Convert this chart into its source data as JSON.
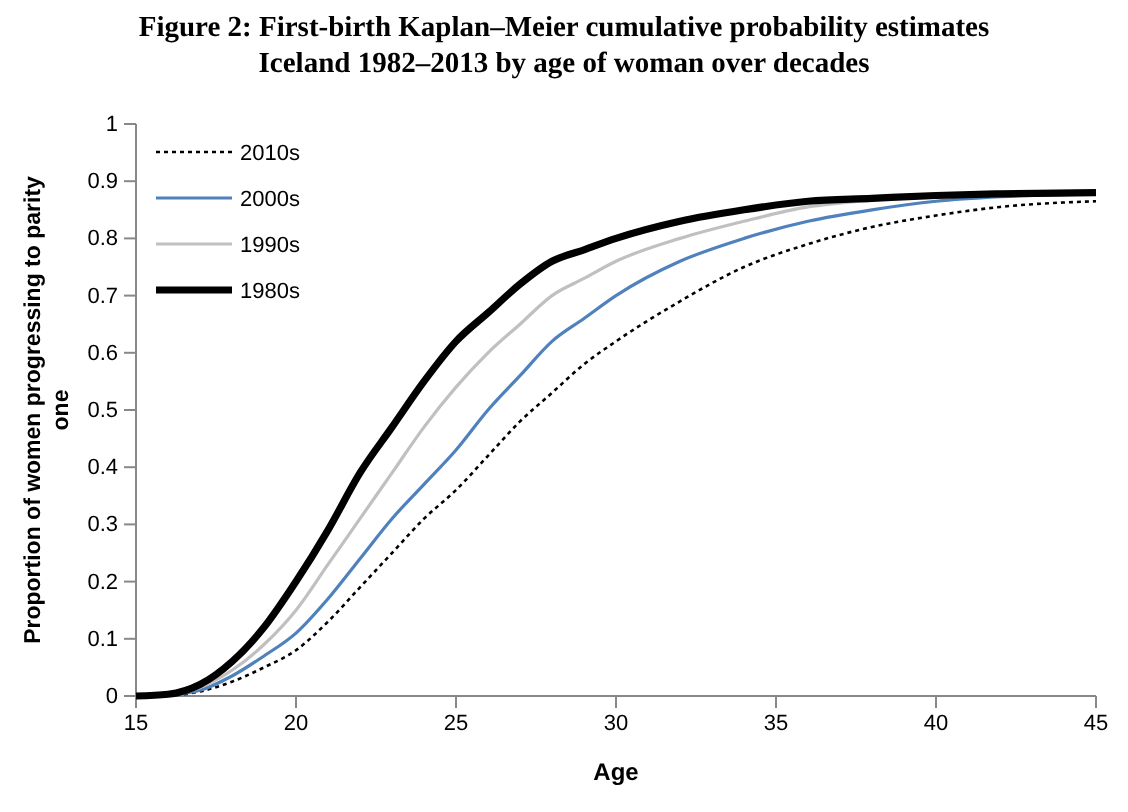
{
  "chart_data": {
    "type": "line",
    "title": "Figure 2: First-birth Kaplan–Meier cumulative probability estimates",
    "subtitle": "Iceland 1982–2013 by age of woman over decades",
    "xlabel": "Age",
    "ylabel": "Proportion of women progressing to parity one",
    "x": [
      15,
      16,
      17,
      18,
      19,
      20,
      21,
      22,
      23,
      24,
      25,
      26,
      27,
      28,
      29,
      30,
      32,
      34,
      36,
      38,
      40,
      42,
      45
    ],
    "series": [
      {
        "name": "2010s",
        "color": "#000000",
        "line_style": "dotted",
        "values": [
          0,
          0.001,
          0.008,
          0.025,
          0.05,
          0.08,
          0.13,
          0.19,
          0.25,
          0.31,
          0.36,
          0.42,
          0.48,
          0.53,
          0.58,
          0.62,
          0.69,
          0.75,
          0.79,
          0.82,
          0.84,
          0.855,
          0.865
        ]
      },
      {
        "name": "2000s",
        "color": "#4f81bd",
        "line_style": "solid",
        "values": [
          0,
          0.002,
          0.01,
          0.035,
          0.07,
          0.11,
          0.17,
          0.24,
          0.31,
          0.37,
          0.43,
          0.5,
          0.56,
          0.62,
          0.66,
          0.7,
          0.76,
          0.8,
          0.83,
          0.85,
          0.865,
          0.873,
          0.878
        ]
      },
      {
        "name": "1990s",
        "color": "#c0c0c0",
        "line_style": "solid",
        "values": [
          0,
          0.002,
          0.015,
          0.045,
          0.09,
          0.15,
          0.23,
          0.31,
          0.39,
          0.47,
          0.54,
          0.6,
          0.65,
          0.7,
          0.73,
          0.76,
          0.8,
          0.83,
          0.855,
          0.867,
          0.875,
          0.878,
          0.88
        ]
      },
      {
        "name": "1980s",
        "color": "#000000",
        "line_style": "solid",
        "values": [
          0,
          0.003,
          0.02,
          0.06,
          0.12,
          0.2,
          0.29,
          0.39,
          0.47,
          0.55,
          0.62,
          0.67,
          0.72,
          0.76,
          0.78,
          0.8,
          0.83,
          0.85,
          0.865,
          0.87,
          0.875,
          0.878,
          0.88
        ]
      }
    ],
    "xlim": [
      15,
      45
    ],
    "xticks": [
      15,
      20,
      25,
      30,
      35,
      40,
      45
    ],
    "ylim": [
      0,
      1
    ],
    "yticks": [
      0,
      0.1,
      0.2,
      0.3,
      0.4,
      0.5,
      0.6,
      0.7,
      0.8,
      0.9,
      1
    ],
    "grid": false,
    "legend": "top left",
    "marker": "none"
  }
}
